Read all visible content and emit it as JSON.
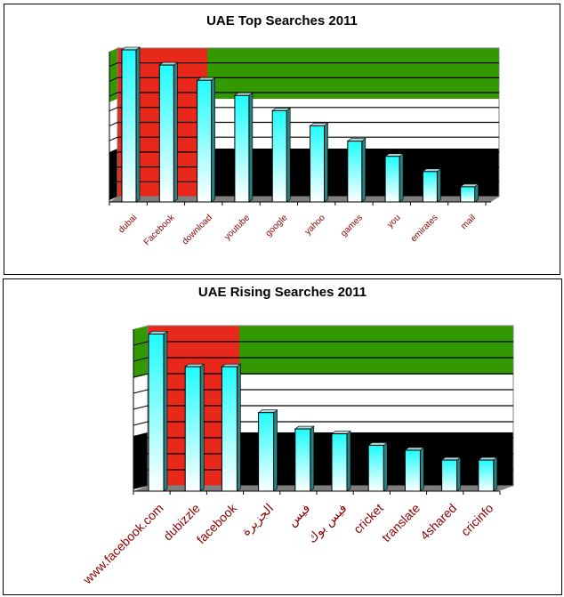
{
  "colors": {
    "flag_green": "#339900",
    "flag_red": "#e8281a",
    "flag_white": "#ffffff",
    "flag_black": "#000000",
    "floor_gray": "#7f7f7f",
    "bar_top_cyan": "#1ffcfc",
    "bar_bottom_white": "#ffffff",
    "bar_side_teal": "#2a8080",
    "label_color": "#8b0000",
    "gridline": "#000000"
  },
  "chart_data": [
    {
      "type": "bar",
      "title": "UAE Top Searches 2011",
      "xlabel": "",
      "ylabel": "",
      "categories": [
        "dubai",
        "Facebook",
        "download",
        "youtube",
        "google",
        "yahoo",
        "games",
        "you",
        "emirates",
        "mail"
      ],
      "values": [
        10,
        9,
        8,
        7,
        6,
        5,
        4,
        3,
        2,
        1
      ],
      "ylim": [
        0,
        10
      ],
      "grid": true,
      "legend": "none",
      "style": "3D column, UAE-flag backdrop",
      "y_tick_labels_shown": false
    },
    {
      "type": "bar",
      "title": "UAE Rising Searches 2011",
      "xlabel": "",
      "ylabel": "",
      "categories": [
        "www.facebook.com",
        "dubizzle",
        "facebook",
        "الجزيرة",
        "فيس",
        "فيس بوك",
        "cricket",
        "translate",
        "4shared",
        "cricinfo"
      ],
      "values": [
        9.6,
        7.6,
        7.6,
        4.8,
        3.8,
        3.5,
        2.8,
        2.5,
        1.9,
        1.9
      ],
      "ylim": [
        0,
        10
      ],
      "grid": true,
      "legend": "none",
      "style": "3D column, UAE-flag backdrop",
      "y_tick_labels_shown": false
    }
  ]
}
